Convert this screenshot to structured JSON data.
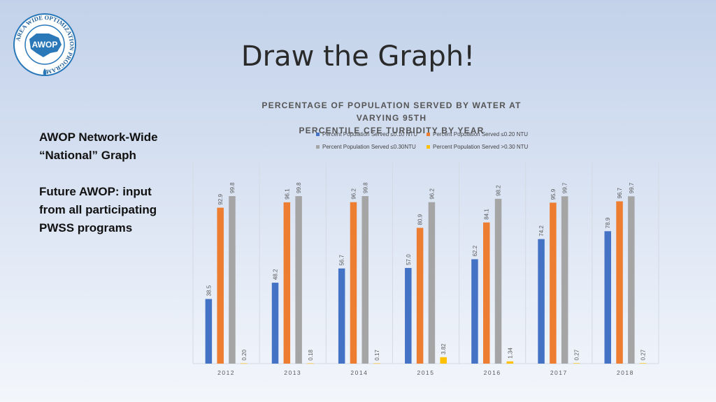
{
  "slide": {
    "title": "Draw the Graph!",
    "logo_text": "AWOP",
    "logo_ring_text": "AREA WIDE OPTIMIZATION PROGRAM"
  },
  "side_text": {
    "line1": "AWOP Network-Wide",
    "line2": "“National” Graph",
    "line3": "Future AWOP: input",
    "line4": "from all participating",
    "line5": "PWSS programs"
  },
  "chart_data": {
    "type": "bar",
    "title_line1": "PERCENTAGE OF POPULATION SERVED BY WATER AT VARYING 95TH",
    "title_line2": "PERCENTILE CFE TURBIDITY BY YEAR",
    "categories": [
      "2012",
      "2013",
      "2014",
      "2015",
      "2016",
      "2017",
      "2018"
    ],
    "series": [
      {
        "name": "Percent Population Served ≤0.10 NTU",
        "color": "#4472c4",
        "values": [
          38.5,
          48.2,
          56.7,
          57.0,
          62.2,
          74.2,
          78.9
        ]
      },
      {
        "name": "Percent Population Served ≤0.20 NTU",
        "color": "#ed7d31",
        "values": [
          92.9,
          96.1,
          96.2,
          80.9,
          84.1,
          95.9,
          96.7
        ]
      },
      {
        "name": "Percent Population Served ≤0.30NTU",
        "color": "#a5a5a5",
        "values": [
          99.8,
          99.8,
          99.8,
          96.2,
          98.2,
          99.7,
          99.7
        ]
      },
      {
        "name": "Percent Population Served >0.30 NTU",
        "color": "#ffc000",
        "values": [
          0.2,
          0.18,
          0.17,
          3.82,
          1.34,
          0.27,
          0.27
        ]
      }
    ],
    "value_labels": [
      [
        "38.5",
        "48.2",
        "56.7",
        "57.0",
        "62.2",
        "74.2",
        "78.9"
      ],
      [
        "92.9",
        "96.1",
        "96.2",
        "80.9",
        "84.1",
        "95.9",
        "96.7"
      ],
      [
        "99.8",
        "99.8",
        "99.8",
        "96.2",
        "98.2",
        "99.7",
        "99.7"
      ],
      [
        "0.20",
        "0.18",
        "0.17",
        "3.82",
        "1.34",
        "0.27",
        "0.27"
      ]
    ],
    "ylim": [
      0,
      100
    ],
    "grid": "vertical-category-separators",
    "legend": "top"
  }
}
